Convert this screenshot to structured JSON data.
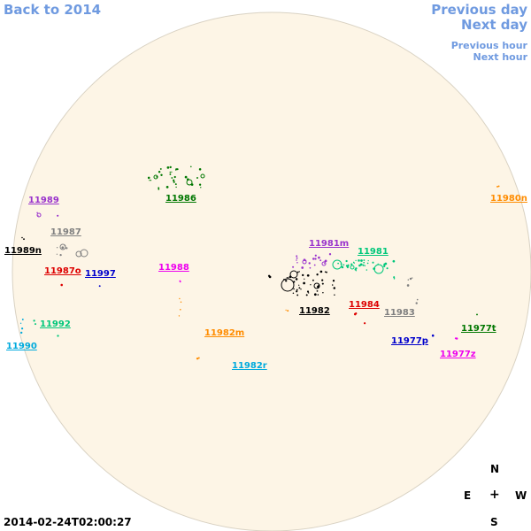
{
  "nav": {
    "back": "Back to 2014",
    "previous_day": "Previous day",
    "next_day": "Next day",
    "previous_hour": "Previous hour",
    "next_hour": "Next hour",
    "color": "#6f9ae0"
  },
  "timestamp": "2014-02-24T02:00:27",
  "compass": {
    "n": "N",
    "e": "E",
    "center": "+",
    "w": "W",
    "s": "S"
  },
  "disk": {
    "fill": "#fdf5e6",
    "stroke": "#d9d2c3"
  },
  "regions": [
    {
      "id": "11986",
      "label": "11986",
      "color": "#007700"
    },
    {
      "id": "11980n",
      "label": "11980n",
      "color": "#ff8c00"
    },
    {
      "id": "11989",
      "label": "11989",
      "color": "#9932cc"
    },
    {
      "id": "11987",
      "label": "11987",
      "color": "#808080"
    },
    {
      "id": "11989n",
      "label": "11989n",
      "color": "#000000"
    },
    {
      "id": "11987o",
      "label": "11987o",
      "color": "#dd0000"
    },
    {
      "id": "11997",
      "label": "11997",
      "color": "#0000cc"
    },
    {
      "id": "11988",
      "label": "11988",
      "color": "#ee00ee"
    },
    {
      "id": "11981m",
      "label": "11981m",
      "color": "#9932cc"
    },
    {
      "id": "11981",
      "label": "11981",
      "color": "#00c77a"
    },
    {
      "id": "11984",
      "label": "11984",
      "color": "#dd0000"
    },
    {
      "id": "11982",
      "label": "11982",
      "color": "#000000"
    },
    {
      "id": "11983",
      "label": "11983",
      "color": "#808080"
    },
    {
      "id": "11992",
      "label": "11992",
      "color": "#00c77a"
    },
    {
      "id": "11990",
      "label": "11990",
      "color": "#00aadd"
    },
    {
      "id": "11982m",
      "label": "11982m",
      "color": "#ff8c00"
    },
    {
      "id": "11982r",
      "label": "11982r",
      "color": "#00aadd"
    },
    {
      "id": "11977p",
      "label": "11977p",
      "color": "#0000cc"
    },
    {
      "id": "11977t",
      "label": "11977t",
      "color": "#007700"
    },
    {
      "id": "11977z",
      "label": "11977z",
      "color": "#ee00ee"
    }
  ]
}
